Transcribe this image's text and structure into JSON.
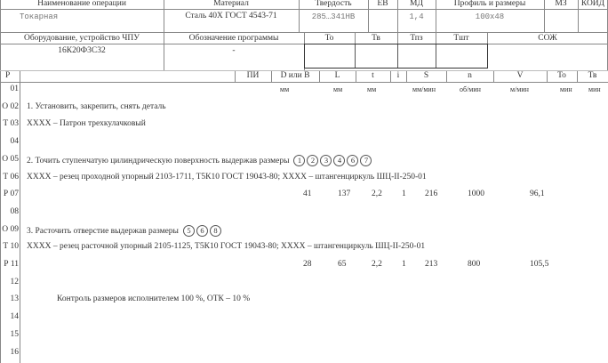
{
  "header": {
    "row1_labels": [
      "Наименование операции",
      "Материал",
      "Твердость",
      "ЕВ",
      "МД",
      "Профиль и размеры",
      "МЗ",
      "КОИД"
    ],
    "operation_name": "Токарная",
    "material": "Сталь 40Х   ГОСТ 4543-71",
    "hardness": "285…341HB",
    "ev": "",
    "md": "1,4",
    "profile": "100х48",
    "row2_labels": [
      "Оборудование, устройство ЧПУ",
      "Обозначение программы",
      "То",
      "Тв",
      "Тпз",
      "Тшт",
      "СОЖ"
    ],
    "equipment": "16К20Ф3С32",
    "program": "-"
  },
  "columns": {
    "labels": [
      "Р",
      "ПИ",
      "D или В",
      "L",
      "t",
      "i",
      "S",
      "n",
      "V",
      "То",
      "Тв"
    ],
    "units": [
      "мм",
      "мм",
      "мм",
      "мм/мин",
      "об/мин",
      "м/мин",
      "мин",
      "мин"
    ]
  },
  "rows": [
    {
      "num": "01",
      "text": ""
    },
    {
      "num": "О 02",
      "text": "1. Установить, закрепить, снять деталь"
    },
    {
      "num": "Т 03",
      "text": "XXXX – Патрон трехкулачковый"
    },
    {
      "num": "04",
      "text": ""
    },
    {
      "num": "О 05",
      "text": "2. Точить ступенчатую цилиндрическую поверхность выдержав размеры",
      "circles": [
        "1",
        "2",
        "3",
        "4",
        "6",
        "7"
      ]
    },
    {
      "num": "Т 06",
      "text": "XXXX – резец проходной упорный 2103-1711, Т5К10 ГОСТ 19043-80; XXXX  – штангенциркуль ШЦ-II-250-01"
    },
    {
      "num": "Р 07",
      "values": [
        "41",
        "137",
        "2,2",
        "1",
        "216",
        "1000",
        "96,1"
      ]
    },
    {
      "num": "08",
      "text": ""
    },
    {
      "num": "О 09",
      "text": "3. Расточить отверстие выдержав размеры",
      "circles": [
        "5",
        "6",
        "8"
      ]
    },
    {
      "num": "Т 10",
      "text": "XXXX – резец расточной упорный 2105-1125, Т5К10 ГОСТ 19043-80; XXXX  – штангенциркуль ШЦ-II-250-01"
    },
    {
      "num": "Р 11",
      "values": [
        "28",
        "65",
        "2,2",
        "1",
        "213",
        "800",
        "105,5"
      ]
    },
    {
      "num": "12",
      "text": ""
    },
    {
      "num": "13",
      "text": "Контроль размеров исполнителем  100 %, ОТК – 10 %"
    },
    {
      "num": "14",
      "text": ""
    },
    {
      "num": "15",
      "text": ""
    },
    {
      "num": "16",
      "text": ""
    }
  ]
}
